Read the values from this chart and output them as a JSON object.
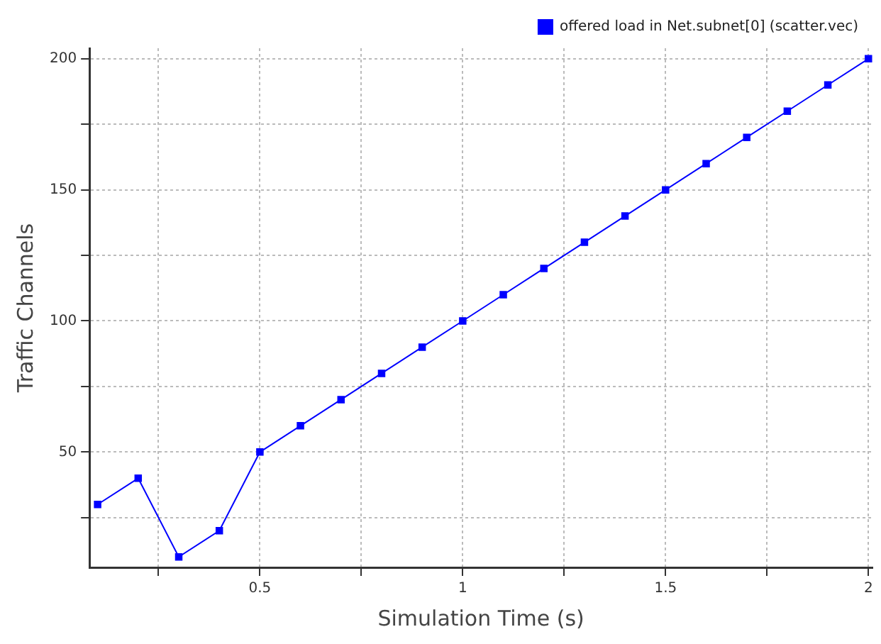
{
  "chart_data": {
    "type": "line",
    "xlabel": "Simulation Time (s)",
    "ylabel": "Traffic Channels",
    "x": [
      0.1,
      0.2,
      0.3,
      0.4,
      0.5,
      0.6,
      0.7,
      0.8,
      0.9,
      1.0,
      1.1,
      1.2,
      1.3,
      1.4,
      1.5,
      1.6,
      1.7,
      1.8,
      1.9,
      2.0
    ],
    "series": [
      {
        "name": "offered load in Net.subnet[0] (scatter.vec)",
        "color": "#0000ff",
        "values": [
          30,
          40,
          10,
          20,
          50,
          60,
          70,
          80,
          90,
          100,
          110,
          120,
          130,
          140,
          150,
          160,
          170,
          180,
          190,
          200
        ]
      }
    ],
    "xlim": [
      0.08,
      2.01
    ],
    "xticks": [
      {
        "value": 0.25,
        "label": null
      },
      0.5,
      {
        "value": 0.75,
        "label": null
      },
      1,
      {
        "value": 1.25,
        "label": null
      },
      1.5,
      {
        "value": 1.75,
        "label": null
      },
      2
    ],
    "ylim": [
      6,
      204
    ],
    "yticks": [
      {
        "value": 25,
        "label": null
      },
      50,
      {
        "value": 75,
        "label": null
      },
      100,
      {
        "value": 125,
        "label": null
      },
      150,
      {
        "value": 175,
        "label": null
      },
      200
    ],
    "grid": true,
    "legend": "top right",
    "marker": "square",
    "line_style": "solid"
  }
}
